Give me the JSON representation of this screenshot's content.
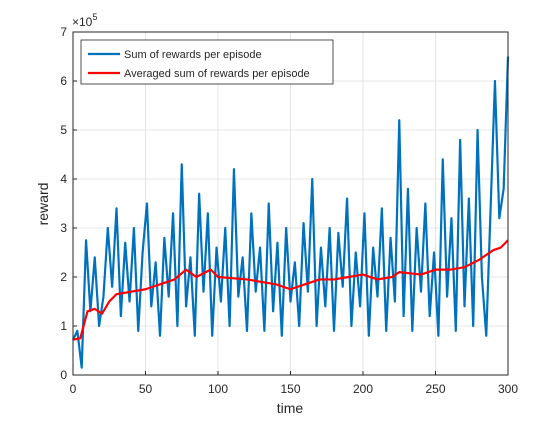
{
  "chart_data": {
    "type": "line",
    "xlabel": "time",
    "ylabel": "reward",
    "y_multiplier": {
      "base": "×10",
      "exponent": "5"
    },
    "xlim": [
      0,
      300
    ],
    "xticks": [
      0,
      50,
      100,
      150,
      200,
      250,
      300
    ],
    "ylim": [
      0,
      7
    ],
    "yticks": [
      0,
      1,
      2,
      3,
      4,
      5,
      6,
      7
    ],
    "grid": true,
    "legend_position": "upper-left",
    "series": [
      {
        "name": "Sum of rewards per episode",
        "color": "#0072bd",
        "x": [
          0,
          3,
          6,
          9,
          12,
          15,
          18,
          21,
          24,
          27,
          30,
          33,
          36,
          39,
          42,
          45,
          48,
          51,
          54,
          57,
          60,
          63,
          66,
          69,
          72,
          75,
          78,
          81,
          84,
          87,
          90,
          93,
          96,
          99,
          102,
          105,
          108,
          111,
          114,
          117,
          120,
          123,
          126,
          129,
          132,
          135,
          138,
          141,
          144,
          147,
          150,
          153,
          156,
          159,
          162,
          165,
          168,
          171,
          174,
          177,
          180,
          183,
          186,
          189,
          192,
          195,
          198,
          201,
          204,
          207,
          210,
          213,
          216,
          219,
          222,
          225,
          228,
          231,
          234,
          237,
          240,
          243,
          246,
          249,
          252,
          255,
          258,
          261,
          264,
          267,
          270,
          273,
          276,
          279,
          282,
          285,
          288,
          291,
          294,
          297,
          300
        ],
        "values": [
          0.72,
          0.9,
          0.15,
          2.75,
          1.3,
          2.4,
          1.0,
          1.6,
          3.0,
          1.8,
          3.4,
          1.2,
          2.7,
          1.5,
          3.0,
          0.9,
          2.5,
          3.5,
          1.4,
          2.3,
          0.8,
          2.8,
          1.6,
          3.3,
          1.0,
          4.3,
          1.4,
          2.4,
          0.8,
          3.7,
          1.7,
          3.3,
          0.8,
          2.6,
          1.5,
          3.0,
          1.0,
          4.2,
          1.6,
          2.4,
          0.9,
          3.3,
          1.7,
          2.6,
          0.9,
          3.5,
          1.3,
          2.7,
          0.8,
          3.0,
          1.5,
          2.3,
          1.0,
          3.1,
          1.7,
          4.0,
          1.0,
          2.6,
          1.4,
          3.0,
          0.9,
          2.9,
          1.8,
          3.6,
          1.0,
          2.5,
          1.4,
          3.3,
          0.8,
          2.6,
          1.6,
          3.4,
          0.9,
          2.8,
          1.5,
          5.2,
          1.2,
          3.8,
          0.9,
          3.0,
          1.7,
          3.5,
          1.2,
          2.5,
          0.8,
          4.4,
          1.6,
          3.2,
          0.9,
          4.8,
          1.4,
          3.6,
          1.0,
          5.0,
          2.0,
          0.8,
          3.4,
          6.0,
          3.2,
          3.8,
          6.5
        ]
      },
      {
        "name": "Averaged sum of rewards per episode",
        "color": "#ff0000",
        "x": [
          0,
          5,
          10,
          15,
          20,
          25,
          30,
          40,
          50,
          60,
          70,
          78,
          85,
          95,
          100,
          120,
          130,
          140,
          150,
          160,
          170,
          180,
          190,
          200,
          210,
          220,
          225,
          240,
          250,
          260,
          270,
          280,
          290,
          295,
          300
        ],
        "values": [
          0.72,
          0.75,
          1.3,
          1.35,
          1.25,
          1.5,
          1.65,
          1.7,
          1.75,
          1.85,
          1.95,
          2.15,
          2.0,
          2.15,
          2.0,
          1.95,
          1.9,
          1.85,
          1.75,
          1.85,
          1.95,
          1.95,
          2.0,
          2.05,
          1.95,
          2.0,
          2.1,
          2.05,
          2.15,
          2.15,
          2.2,
          2.35,
          2.55,
          2.6,
          2.75
        ]
      }
    ]
  }
}
